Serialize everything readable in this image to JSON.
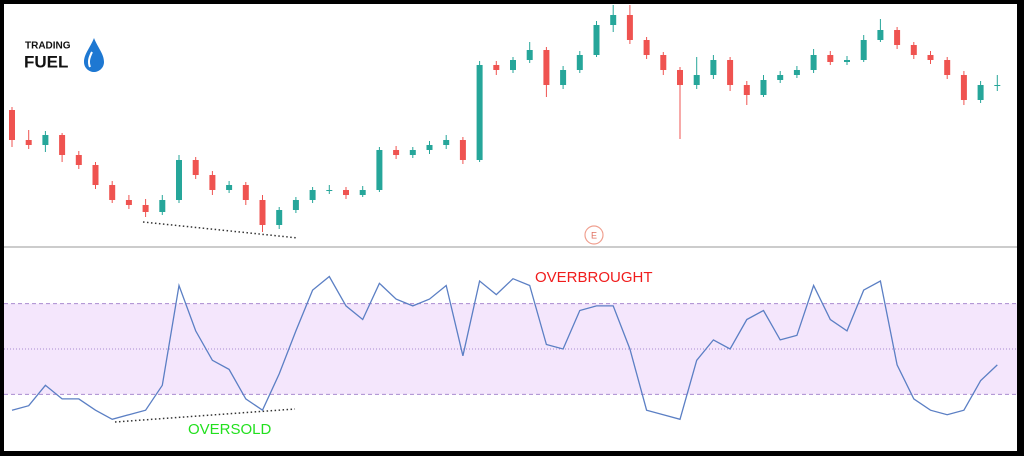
{
  "logo": {
    "line1": "TRADING",
    "line2": "FUEL"
  },
  "chart_data": [
    {
      "type": "candlestick",
      "up_color": "#26a69a",
      "down_color": "#ef5350",
      "ylim": [
        0,
        242
      ],
      "event_label": "E",
      "open": [
        137,
        107,
        102,
        112,
        92,
        82,
        62,
        47,
        42,
        35,
        47,
        87,
        72,
        57,
        62,
        47,
        22,
        37,
        47,
        57,
        57,
        52,
        57,
        97,
        92,
        97,
        102,
        107,
        87,
        182,
        177,
        187,
        197,
        162,
        177,
        192,
        222,
        232,
        207,
        192,
        177,
        162,
        172,
        187,
        162,
        152,
        167,
        172,
        177,
        192,
        185,
        187,
        207,
        217,
        202,
        192,
        187,
        172,
        147,
        162
      ],
      "high": [
        140,
        117,
        116,
        114,
        96,
        85,
        66,
        52,
        48,
        52,
        92,
        90,
        76,
        66,
        65,
        52,
        40,
        50,
        60,
        62,
        60,
        61,
        100,
        101,
        100,
        106,
        112,
        110,
        186,
        186,
        190,
        205,
        200,
        181,
        196,
        226,
        242,
        242,
        210,
        195,
        180,
        190,
        192,
        190,
        166,
        172,
        176,
        181,
        198,
        196,
        191,
        212,
        228,
        220,
        205,
        196,
        190,
        176,
        166,
        172
      ],
      "low": [
        100,
        98,
        95,
        85,
        78,
        58,
        44,
        38,
        30,
        32,
        44,
        68,
        52,
        54,
        42,
        15,
        18,
        34,
        44,
        53,
        48,
        50,
        55,
        88,
        89,
        93,
        98,
        83,
        85,
        172,
        174,
        184,
        150,
        158,
        174,
        190,
        215,
        203,
        188,
        172,
        108,
        158,
        168,
        156,
        142,
        150,
        164,
        169,
        174,
        182,
        182,
        185,
        205,
        198,
        188,
        183,
        168,
        142,
        144,
        156
      ],
      "close": [
        107,
        102,
        112,
        92,
        82,
        62,
        47,
        42,
        35,
        47,
        87,
        72,
        57,
        62,
        47,
        22,
        37,
        47,
        57,
        57,
        52,
        57,
        97,
        92,
        97,
        102,
        107,
        87,
        182,
        177,
        187,
        197,
        162,
        177,
        192,
        222,
        232,
        207,
        192,
        177,
        162,
        172,
        187,
        162,
        152,
        167,
        172,
        177,
        192,
        185,
        187,
        207,
        217,
        202,
        192,
        187,
        172,
        147,
        162,
        162
      ]
    },
    {
      "type": "line",
      "color": "#5b7fc4",
      "ylim": [
        5,
        95
      ],
      "upper_band": 70,
      "lower_band": 30,
      "midline": 50,
      "band_color": "#f4e6fc",
      "band_line_color": "#a98bd0",
      "values": [
        23,
        25,
        34,
        28,
        28,
        23,
        19,
        21,
        23,
        34,
        78,
        58,
        45,
        41,
        28,
        23,
        39,
        58,
        76,
        82,
        69,
        63,
        79,
        72,
        69,
        72,
        78,
        47,
        80,
        74,
        81,
        78,
        52,
        50,
        67,
        69,
        69,
        50,
        23,
        21,
        19,
        45,
        54,
        50,
        63,
        67,
        54,
        56,
        78,
        63,
        58,
        76,
        80,
        43,
        28,
        23,
        21,
        23,
        36,
        43
      ],
      "annotations": [
        {
          "text": "OVERBROUGHT",
          "color": "#f01c1c"
        },
        {
          "text": "OVERSOLD",
          "color": "#22e01e"
        }
      ]
    }
  ]
}
